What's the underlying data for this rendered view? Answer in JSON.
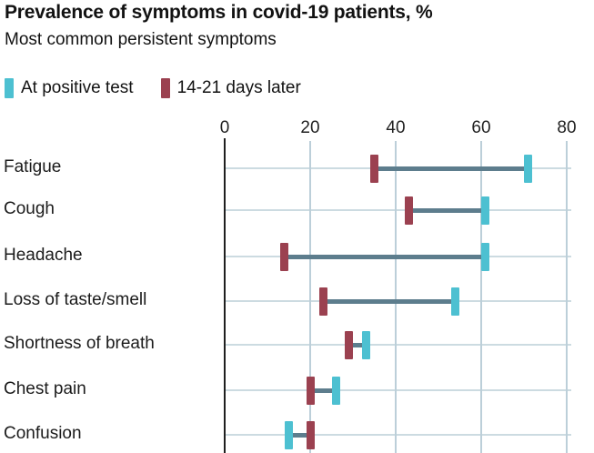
{
  "header": {
    "title": "Prevalence of symptoms in covid-19 patients, %",
    "subtitle": "Most common persistent symptoms"
  },
  "legend": {
    "items": [
      {
        "name": "at-positive-test",
        "label": "At positive test",
        "color": "#4dc0d1"
      },
      {
        "name": "14-21-days-later",
        "label": "14-21 days later",
        "color": "#9b4150"
      }
    ]
  },
  "chart_data": {
    "type": "dumbbell",
    "title": "Prevalence of symptoms in covid-19 patients, %",
    "subtitle": "Most common persistent symptoms",
    "categories": [
      "Fatigue",
      "Cough",
      "Headache",
      "Loss of taste/smell",
      "Shortness of breath",
      "Chest pain",
      "Confusion"
    ],
    "series": [
      {
        "name": "At positive test",
        "color": "#4dc0d1",
        "values": [
          71,
          61,
          61,
          54,
          33,
          26,
          15
        ]
      },
      {
        "name": "14-21 days later",
        "color": "#9b4150",
        "values": [
          35,
          43,
          14,
          23,
          29,
          20,
          20
        ]
      }
    ],
    "x_ticks": [
      0,
      20,
      40,
      60,
      80
    ],
    "xlim": [
      0,
      80
    ],
    "xlabel": "",
    "ylabel": "",
    "grid": true,
    "legend_position": "top",
    "connector_color": "#5d7d8d",
    "zero_axis_color": "#1f1f1f",
    "gridline_color": "#bccfd9",
    "row_line_color": "#ccdbe1"
  }
}
